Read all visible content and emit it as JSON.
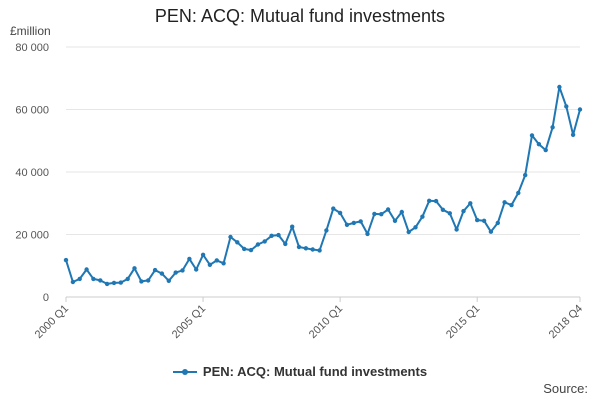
{
  "title": "PEN: ACQ: Mutual fund investments",
  "y_unit": "£million",
  "source_label": "Source:",
  "colors": {
    "series": "#1f77b4",
    "grid": "#e6e6e6",
    "axis": "#cccccc"
  },
  "chart_data": {
    "type": "line",
    "title": "PEN: ACQ: Mutual fund investments",
    "ylabel": "£million",
    "ylim": [
      0,
      80000
    ],
    "yticks": [
      0,
      20000,
      40000,
      60000,
      80000
    ],
    "ytick_labels": [
      "0",
      "20 000",
      "40 000",
      "60 000",
      "80 000"
    ],
    "xtick_labels": [
      "2000 Q1",
      "2005 Q1",
      "2010 Q1",
      "2015 Q1",
      "2018 Q4"
    ],
    "grid": true,
    "legend_position": "bottom",
    "x": [
      "2000 Q1",
      "2000 Q2",
      "2000 Q3",
      "2000 Q4",
      "2001 Q1",
      "2001 Q2",
      "2001 Q3",
      "2001 Q4",
      "2002 Q1",
      "2002 Q2",
      "2002 Q3",
      "2002 Q4",
      "2003 Q1",
      "2003 Q2",
      "2003 Q3",
      "2003 Q4",
      "2004 Q1",
      "2004 Q2",
      "2004 Q3",
      "2004 Q4",
      "2005 Q1",
      "2005 Q2",
      "2005 Q3",
      "2005 Q4",
      "2006 Q1",
      "2006 Q2",
      "2006 Q3",
      "2006 Q4",
      "2007 Q1",
      "2007 Q2",
      "2007 Q3",
      "2007 Q4",
      "2008 Q1",
      "2008 Q2",
      "2008 Q3",
      "2008 Q4",
      "2009 Q1",
      "2009 Q2",
      "2009 Q3",
      "2009 Q4",
      "2010 Q1",
      "2010 Q2",
      "2010 Q3",
      "2010 Q4",
      "2011 Q1",
      "2011 Q2",
      "2011 Q3",
      "2011 Q4",
      "2012 Q1",
      "2012 Q2",
      "2012 Q3",
      "2012 Q4",
      "2013 Q1",
      "2013 Q2",
      "2013 Q3",
      "2013 Q4",
      "2014 Q1",
      "2014 Q2",
      "2014 Q3",
      "2014 Q4",
      "2015 Q1",
      "2015 Q2",
      "2015 Q3",
      "2015 Q4",
      "2016 Q1",
      "2016 Q2",
      "2016 Q3",
      "2016 Q4",
      "2017 Q1",
      "2017 Q2",
      "2017 Q3",
      "2017 Q4",
      "2018 Q1",
      "2018 Q2",
      "2018 Q3",
      "2018 Q4"
    ],
    "series": [
      {
        "name": "PEN: ACQ: Mutual fund investments",
        "values": [
          11800,
          4800,
          5800,
          8800,
          5800,
          5300,
          4200,
          4500,
          4600,
          5800,
          9200,
          5000,
          5300,
          8600,
          7500,
          5200,
          7800,
          8500,
          12200,
          8800,
          13500,
          10300,
          11700,
          10800,
          19200,
          17500,
          15400,
          15000,
          16800,
          17800,
          19600,
          19800,
          17000,
          22500,
          16000,
          15600,
          15200,
          14900,
          21300,
          28300,
          26900,
          23100,
          23700,
          24200,
          20200,
          26600,
          26500,
          28000,
          24400,
          27200,
          20800,
          22300,
          25700,
          30800,
          30700,
          27900,
          26800,
          21600,
          27500,
          30000,
          24600,
          24400,
          20900,
          23700,
          30300,
          29400,
          33300,
          39000,
          51700,
          48900,
          47000,
          54300,
          67200,
          61000,
          51900,
          60000
        ]
      }
    ]
  }
}
